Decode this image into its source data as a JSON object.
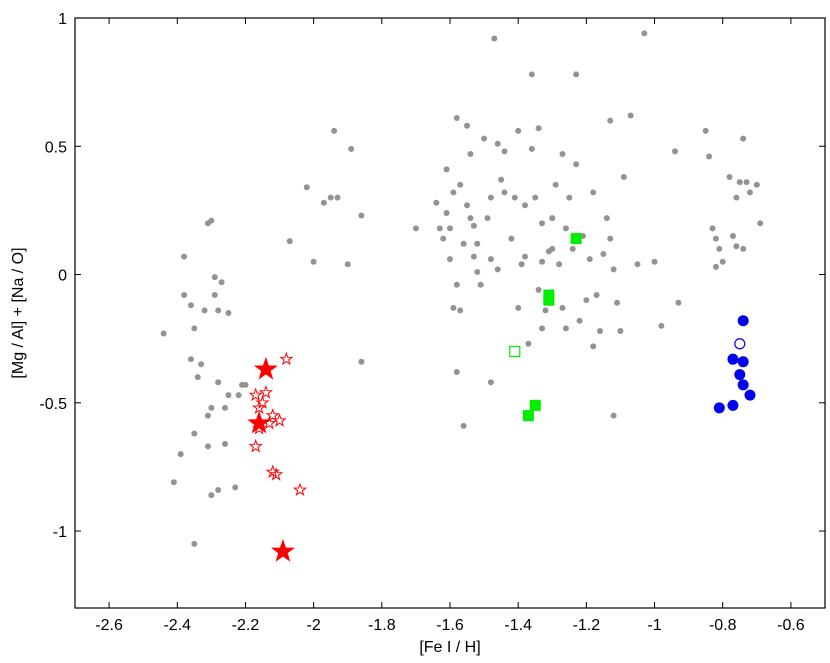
{
  "chart_data": {
    "type": "scatter",
    "title": "",
    "xlabel": "[Fe I / H]",
    "ylabel": "[Mg / Al] + [Na / O]",
    "xlim": [
      -2.7,
      -0.5
    ],
    "ylim": [
      -1.3,
      1.0
    ],
    "xticks": [
      -2.6,
      -2.4,
      -2.2,
      -2.0,
      -1.8,
      -1.6,
      -1.4,
      -1.2,
      -1.0,
      -0.8,
      -0.6
    ],
    "xtick_labels": [
      "-2.6",
      "-2.4",
      "-2.2",
      "-2",
      "-1.8",
      "-1.6",
      "-1.4",
      "-1.2",
      "-1",
      "-0.8",
      "-0.6"
    ],
    "yticks": [
      -1.0,
      -0.5,
      0.0,
      0.5,
      1.0
    ],
    "ytick_labels": [
      "-1",
      "-0.5",
      "0",
      "0.5",
      "1"
    ],
    "grid": false,
    "legend": "none",
    "series": [
      {
        "marker": "dot",
        "color": "#939393",
        "points": [
          [
            -2.44,
            -0.23
          ],
          [
            -2.41,
            -0.81
          ],
          [
            -2.39,
            -0.7
          ],
          [
            -2.38,
            -0.08
          ],
          [
            -2.38,
            0.07
          ],
          [
            -2.36,
            -0.33
          ],
          [
            -2.36,
            -0.12
          ],
          [
            -2.35,
            -0.21
          ],
          [
            -2.35,
            -0.62
          ],
          [
            -2.35,
            -1.05
          ],
          [
            -2.34,
            -0.4
          ],
          [
            -2.33,
            -0.35
          ],
          [
            -2.32,
            -0.14
          ],
          [
            -2.31,
            -0.55
          ],
          [
            -2.31,
            -0.67
          ],
          [
            -2.31,
            0.2
          ],
          [
            -2.3,
            0.21
          ],
          [
            -2.3,
            -0.86
          ],
          [
            -2.3,
            -0.52
          ],
          [
            -2.29,
            -0.08
          ],
          [
            -2.29,
            -0.01
          ],
          [
            -2.28,
            -0.84
          ],
          [
            -2.28,
            -0.42
          ],
          [
            -2.28,
            -0.14
          ],
          [
            -2.27,
            -0.03
          ],
          [
            -2.26,
            -0.66
          ],
          [
            -2.26,
            -0.52
          ],
          [
            -2.25,
            -0.47
          ],
          [
            -2.25,
            -0.15
          ],
          [
            -2.23,
            -0.83
          ],
          [
            -2.22,
            -0.47
          ],
          [
            -2.21,
            -0.43
          ],
          [
            -2.2,
            -0.43
          ],
          [
            -2.07,
            0.13
          ],
          [
            -2.02,
            0.34
          ],
          [
            -2.0,
            0.05
          ],
          [
            -1.97,
            0.28
          ],
          [
            -1.95,
            0.3
          ],
          [
            -1.94,
            0.56
          ],
          [
            -1.93,
            0.3
          ],
          [
            -1.9,
            0.04
          ],
          [
            -1.89,
            0.49
          ],
          [
            -1.86,
            0.23
          ],
          [
            -1.86,
            -0.34
          ],
          [
            -1.7,
            0.18
          ],
          [
            -1.64,
            0.28
          ],
          [
            -1.63,
            0.18
          ],
          [
            -1.62,
            0.14
          ],
          [
            -1.61,
            0.41
          ],
          [
            -1.61,
            0.24
          ],
          [
            -1.6,
            0.06
          ],
          [
            -1.6,
            0.18
          ],
          [
            -1.59,
            -0.13
          ],
          [
            -1.59,
            0.32
          ],
          [
            -1.58,
            0.61
          ],
          [
            -1.58,
            -0.38
          ],
          [
            -1.58,
            -0.04
          ],
          [
            -1.57,
            0.35
          ],
          [
            -1.57,
            -0.14
          ],
          [
            -1.56,
            -0.59
          ],
          [
            -1.56,
            0.12
          ],
          [
            -1.55,
            0.58
          ],
          [
            -1.55,
            0.27
          ],
          [
            -1.54,
            0.47
          ],
          [
            -1.54,
            0.22
          ],
          [
            -1.53,
            0.19
          ],
          [
            -1.53,
            0.07
          ],
          [
            -1.52,
            0.12
          ],
          [
            -1.52,
            0.01
          ],
          [
            -1.51,
            -0.04
          ],
          [
            -1.5,
            0.53
          ],
          [
            -1.49,
            0.22
          ],
          [
            -1.48,
            -0.42
          ],
          [
            -1.48,
            0.06
          ],
          [
            -1.48,
            0.3
          ],
          [
            -1.47,
            0.92
          ],
          [
            -1.46,
            0.51
          ],
          [
            -1.46,
            0.02
          ],
          [
            -1.45,
            0.37
          ],
          [
            -1.44,
            0.48
          ],
          [
            -1.44,
            0.32
          ],
          [
            -1.42,
            0.14
          ],
          [
            -1.41,
            0.3
          ],
          [
            -1.4,
            0.56
          ],
          [
            -1.4,
            -0.13
          ],
          [
            -1.39,
            0.04
          ],
          [
            -1.38,
            0.27
          ],
          [
            -1.38,
            0.07
          ],
          [
            -1.37,
            -0.27
          ],
          [
            -1.36,
            0.78
          ],
          [
            -1.36,
            0.49
          ],
          [
            -1.35,
            0.3
          ],
          [
            -1.34,
            0.57
          ],
          [
            -1.34,
            -0.06
          ],
          [
            -1.33,
            -0.21
          ],
          [
            -1.33,
            0.05
          ],
          [
            -1.33,
            0.2
          ],
          [
            -1.32,
            -0.14
          ],
          [
            -1.31,
            0.09
          ],
          [
            -1.3,
            0.1
          ],
          [
            -1.3,
            0.22
          ],
          [
            -1.29,
            0.35
          ],
          [
            -1.28,
            0.04
          ],
          [
            -1.27,
            -0.13
          ],
          [
            -1.27,
            0.47
          ],
          [
            -1.26,
            0.18
          ],
          [
            -1.26,
            -0.21
          ],
          [
            -1.25,
            0.3
          ],
          [
            -1.24,
            0.1
          ],
          [
            -1.23,
            0.78
          ],
          [
            -1.23,
            0.43
          ],
          [
            -1.22,
            -0.18
          ],
          [
            -1.21,
            0.15
          ],
          [
            -1.2,
            -0.1
          ],
          [
            -1.19,
            0.06
          ],
          [
            -1.18,
            0.32
          ],
          [
            -1.18,
            -0.28
          ],
          [
            -1.17,
            -0.08
          ],
          [
            -1.16,
            -0.22
          ],
          [
            -1.15,
            0.08
          ],
          [
            -1.14,
            0.22
          ],
          [
            -1.13,
            0.6
          ],
          [
            -1.13,
            0.14
          ],
          [
            -1.12,
            0.02
          ],
          [
            -1.11,
            -0.11
          ],
          [
            -1.1,
            -0.22
          ],
          [
            -1.09,
            0.38
          ],
          [
            -1.07,
            0.62
          ],
          [
            -1.05,
            0.04
          ],
          [
            -1.03,
            0.94
          ],
          [
            -1.0,
            0.05
          ],
          [
            -0.98,
            -0.2
          ],
          [
            -0.94,
            0.48
          ],
          [
            -0.93,
            -0.11
          ],
          [
            -0.85,
            0.56
          ],
          [
            -0.83,
            0.18
          ],
          [
            -0.82,
            0.14
          ],
          [
            -0.81,
            0.1
          ],
          [
            -0.8,
            0.05
          ],
          [
            -0.78,
            0.38
          ],
          [
            -0.77,
            0.15
          ],
          [
            -0.76,
            0.3
          ],
          [
            -0.75,
            0.36
          ],
          [
            -0.74,
            0.1
          ],
          [
            -0.73,
            0.36
          ],
          [
            -0.72,
            0.32
          ],
          [
            -0.7,
            0.35
          ],
          [
            -0.69,
            0.2
          ],
          [
            -1.12,
            -0.55
          ],
          [
            -0.84,
            0.46
          ],
          [
            -0.82,
            0.03
          ],
          [
            -0.76,
            0.11
          ],
          [
            -0.74,
            0.53
          ]
        ]
      },
      {
        "marker": "star-filled",
        "color": "#ff0000",
        "points": [
          [
            -2.14,
            -0.37
          ],
          [
            -2.16,
            -0.58
          ],
          [
            -2.09,
            -1.08
          ]
        ]
      },
      {
        "marker": "star-open",
        "color": "#ff0000",
        "points": [
          [
            -2.08,
            -0.33
          ],
          [
            -2.14,
            -0.46
          ],
          [
            -2.15,
            -0.5
          ],
          [
            -2.17,
            -0.47
          ],
          [
            -2.16,
            -0.52
          ],
          [
            -2.12,
            -0.55
          ],
          [
            -2.1,
            -0.57
          ],
          [
            -2.13,
            -0.58
          ],
          [
            -2.16,
            -0.6
          ],
          [
            -2.17,
            -0.67
          ],
          [
            -2.12,
            -0.77
          ],
          [
            -2.11,
            -0.78
          ],
          [
            -2.04,
            -0.84
          ]
        ]
      },
      {
        "marker": "square-filled",
        "color": "#00ee00",
        "points": [
          [
            -1.23,
            0.14
          ],
          [
            -1.31,
            -0.08
          ],
          [
            -1.31,
            -0.1
          ],
          [
            -1.35,
            -0.51
          ],
          [
            -1.37,
            -0.55
          ]
        ]
      },
      {
        "marker": "square-open",
        "color": "#00ee00",
        "points": [
          [
            -1.41,
            -0.3
          ]
        ]
      },
      {
        "marker": "circle-filled",
        "color": "#0000ee",
        "points": [
          [
            -0.74,
            -0.18
          ],
          [
            -0.77,
            -0.33
          ],
          [
            -0.74,
            -0.34
          ],
          [
            -0.75,
            -0.39
          ],
          [
            -0.74,
            -0.43
          ],
          [
            -0.72,
            -0.47
          ],
          [
            -0.77,
            -0.51
          ],
          [
            -0.81,
            -0.52
          ]
        ]
      },
      {
        "marker": "circle-open",
        "color": "#0000ee",
        "points": [
          [
            -0.75,
            -0.27
          ]
        ]
      }
    ]
  }
}
